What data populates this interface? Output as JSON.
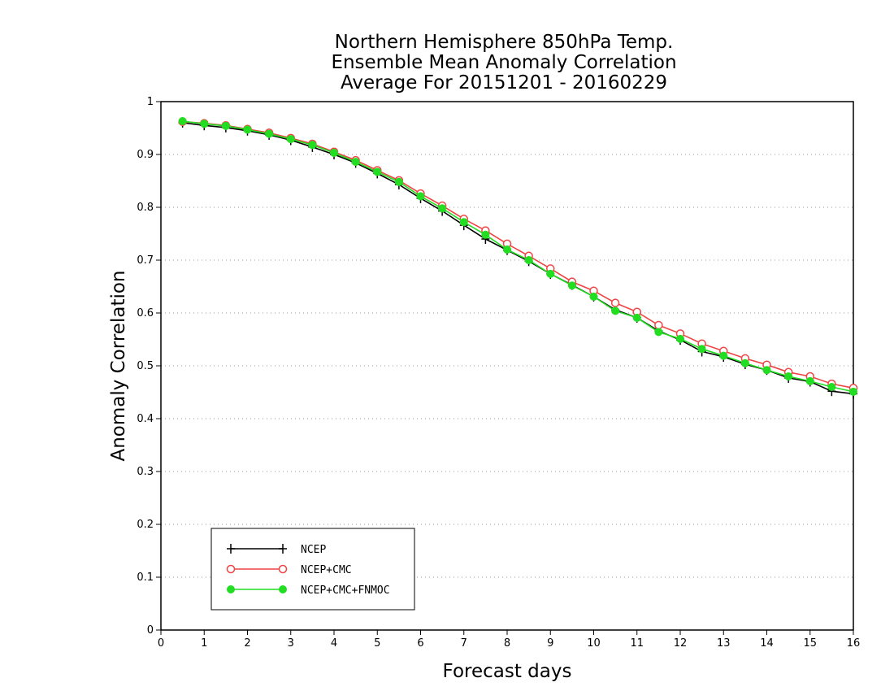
{
  "chart_data": {
    "type": "line",
    "title": [
      "Northern Hemisphere 850hPa Temp.",
      "Ensemble Mean Anomaly Correlation",
      "Average For 20151201 - 20160229"
    ],
    "xlabel": "Forecast days",
    "ylabel": "Anomaly Correlation",
    "xlim": [
      0,
      16
    ],
    "ylim": [
      0,
      1
    ],
    "xticks": [
      0,
      1,
      2,
      3,
      4,
      5,
      6,
      7,
      8,
      9,
      10,
      11,
      12,
      13,
      14,
      15,
      16
    ],
    "xtick_labels": [
      "0",
      "1",
      "2",
      "3",
      "4",
      "5",
      "6",
      "7",
      "8",
      "9",
      "10",
      "11",
      "12",
      "13",
      "14",
      "15",
      "16"
    ],
    "yticks": [
      0,
      0.1,
      0.2,
      0.3,
      0.4,
      0.5,
      0.6,
      0.7,
      0.8,
      0.9,
      1
    ],
    "ytick_labels": [
      "0",
      "0.1",
      "0.2",
      "0.3",
      "0.4",
      "0.5",
      "0.6",
      "0.7",
      "0.8",
      "0.9",
      "1"
    ],
    "grid": "horizontal-dotted",
    "legend_position": "bottom-left",
    "x": [
      0.5,
      1,
      1.5,
      2,
      2.5,
      3,
      3.5,
      4,
      4.5,
      5,
      5.5,
      6,
      6.5,
      7,
      7.5,
      8,
      8.5,
      9,
      9.5,
      10,
      10.5,
      11,
      11.5,
      12,
      12.5,
      13,
      13.5,
      14,
      14.5,
      15,
      15.5,
      16
    ],
    "series": [
      {
        "name": "NCEP",
        "color": "#000000",
        "marker": "plus",
        "values": [
          0.96,
          0.955,
          0.951,
          0.945,
          0.937,
          0.927,
          0.914,
          0.9,
          0.884,
          0.864,
          0.843,
          0.817,
          0.793,
          0.766,
          0.74,
          0.719,
          0.698,
          0.674,
          0.653,
          0.631,
          0.606,
          0.591,
          0.566,
          0.549,
          0.527,
          0.517,
          0.503,
          0.492,
          0.477,
          0.47,
          0.452,
          0.447
        ]
      },
      {
        "name": "NCEP+CMC",
        "color": "#ee4444",
        "marker": "open-circle",
        "values": [
          0.962,
          0.959,
          0.955,
          0.948,
          0.941,
          0.931,
          0.92,
          0.905,
          0.889,
          0.87,
          0.851,
          0.826,
          0.803,
          0.778,
          0.756,
          0.731,
          0.708,
          0.684,
          0.659,
          0.642,
          0.619,
          0.602,
          0.577,
          0.561,
          0.542,
          0.528,
          0.514,
          0.502,
          0.488,
          0.48,
          0.466,
          0.458
        ]
      },
      {
        "name": "NCEP+CMC+FNMOC",
        "color": "#22dd22",
        "marker": "filled-circle",
        "values": [
          0.963,
          0.958,
          0.954,
          0.947,
          0.939,
          0.929,
          0.918,
          0.903,
          0.886,
          0.867,
          0.848,
          0.821,
          0.798,
          0.772,
          0.748,
          0.72,
          0.7,
          0.674,
          0.652,
          0.631,
          0.604,
          0.591,
          0.564,
          0.551,
          0.532,
          0.519,
          0.505,
          0.492,
          0.48,
          0.471,
          0.46,
          0.451
        ]
      }
    ]
  }
}
